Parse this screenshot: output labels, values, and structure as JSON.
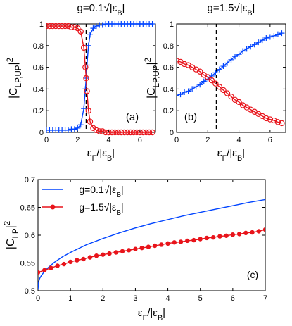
{
  "chart_data": [
    {
      "type": "line",
      "panel_label": "(a)",
      "title": "g=0.1√|εB|",
      "xlabel": "εF/|εB|",
      "ylabel": "|CLP,UP|²",
      "xlim": [
        0,
        7
      ],
      "ylim": [
        0,
        1
      ],
      "xticks": [
        "0",
        "2",
        "4",
        "6"
      ],
      "yticks": [
        "0",
        "0.2",
        "0.4",
        "0.6",
        "0.8",
        "1"
      ],
      "vline_x": 2.55,
      "series": [
        {
          "color": "#0044ff",
          "marker": "+",
          "x": [
            0,
            0.2,
            0.4,
            0.6,
            0.8,
            1.0,
            1.2,
            1.4,
            1.6,
            1.8,
            2.0,
            2.2,
            2.4,
            2.5,
            2.55,
            2.6,
            2.7,
            2.8,
            3.0,
            3.2,
            3.4,
            3.6,
            3.8,
            4.0,
            4.2,
            4.4,
            4.6,
            4.8,
            5.0,
            5.2,
            5.4,
            5.6,
            5.8,
            6.0,
            6.2,
            6.4,
            6.6,
            6.8
          ],
          "y": [
            0.02,
            0.02,
            0.02,
            0.02,
            0.02,
            0.02,
            0.02,
            0.02,
            0.03,
            0.03,
            0.04,
            0.07,
            0.22,
            0.4,
            0.5,
            0.62,
            0.8,
            0.9,
            0.96,
            0.98,
            0.99,
            0.99,
            1,
            1,
            1,
            1,
            1,
            1,
            1,
            1,
            1,
            1,
            1,
            1,
            1,
            1,
            1,
            1
          ]
        },
        {
          "color": "#e8141b",
          "marker": "o",
          "x": [
            0,
            0.2,
            0.4,
            0.6,
            0.8,
            1.0,
            1.2,
            1.4,
            1.6,
            1.8,
            2.0,
            2.2,
            2.4,
            2.5,
            2.55,
            2.6,
            2.7,
            2.8,
            3.0,
            3.2,
            3.4,
            3.6,
            3.8,
            4.0,
            4.2,
            4.4,
            4.6,
            4.8,
            5.0,
            5.2,
            5.4,
            5.6,
            5.8,
            6.0,
            6.2,
            6.4,
            6.6,
            6.8
          ],
          "y": [
            0.98,
            0.98,
            0.98,
            0.98,
            0.98,
            0.98,
            0.98,
            0.98,
            0.97,
            0.97,
            0.96,
            0.93,
            0.78,
            0.6,
            0.5,
            0.38,
            0.2,
            0.1,
            0.04,
            0.02,
            0.01,
            0.01,
            0,
            0,
            0,
            0,
            0,
            0,
            0,
            0,
            0,
            0,
            0,
            0,
            0,
            0,
            0,
            0
          ]
        }
      ]
    },
    {
      "type": "line",
      "panel_label": "(b)",
      "title": "g=1.5√|εB|",
      "xlabel": "εF/|εB|",
      "ylabel": "|CLP,UP|²",
      "xlim": [
        0,
        7
      ],
      "ylim": [
        0,
        1
      ],
      "xticks": [
        "0",
        "2",
        "4",
        "6"
      ],
      "yticks": [
        "0",
        "0.2",
        "0.4",
        "0.6",
        "0.8",
        "1"
      ],
      "vline_x": 2.55,
      "series": [
        {
          "color": "#0044ff",
          "marker": "+",
          "x": [
            0,
            0.25,
            0.5,
            0.75,
            1.0,
            1.25,
            1.5,
            1.75,
            2.0,
            2.25,
            2.5,
            2.75,
            3.0,
            3.25,
            3.5,
            3.75,
            4.0,
            4.25,
            4.5,
            4.75,
            5.0,
            5.25,
            5.5,
            5.75,
            6.0,
            6.25,
            6.5,
            6.75
          ],
          "y": [
            0.34,
            0.35,
            0.37,
            0.38,
            0.4,
            0.42,
            0.44,
            0.47,
            0.49,
            0.52,
            0.55,
            0.58,
            0.61,
            0.64,
            0.67,
            0.7,
            0.72,
            0.75,
            0.77,
            0.79,
            0.81,
            0.83,
            0.85,
            0.87,
            0.88,
            0.89,
            0.905,
            0.915
          ]
        },
        {
          "color": "#e8141b",
          "marker": "o",
          "x": [
            0,
            0.25,
            0.5,
            0.75,
            1.0,
            1.25,
            1.5,
            1.75,
            2.0,
            2.25,
            2.5,
            2.75,
            3.0,
            3.25,
            3.5,
            3.75,
            4.0,
            4.25,
            4.5,
            4.75,
            5.0,
            5.25,
            5.5,
            5.75,
            6.0,
            6.25,
            6.5,
            6.75
          ],
          "y": [
            0.66,
            0.65,
            0.63,
            0.62,
            0.6,
            0.58,
            0.56,
            0.53,
            0.51,
            0.48,
            0.45,
            0.42,
            0.39,
            0.36,
            0.33,
            0.3,
            0.28,
            0.25,
            0.23,
            0.21,
            0.19,
            0.17,
            0.15,
            0.13,
            0.12,
            0.11,
            0.095,
            0.085
          ]
        }
      ]
    },
    {
      "type": "line",
      "panel_label": "(c)",
      "xlabel": "εF/|εB|",
      "ylabel": "|CLP|²",
      "xlim": [
        0,
        7
      ],
      "ylim": [
        0.5,
        0.7
      ],
      "xticks": [
        "0",
        "1",
        "2",
        "3",
        "4",
        "5",
        "6",
        "7"
      ],
      "yticks": [
        "0.5",
        "0.55",
        "0.6",
        "0.65",
        "0.7"
      ],
      "legend_position": "top-left",
      "series": [
        {
          "name": "g=0.1√|εB|",
          "color": "#0044ff",
          "marker": "none",
          "x": [
            0,
            0.02,
            0.05,
            0.1,
            0.2,
            0.3,
            0.5,
            0.75,
            1.0,
            1.5,
            2.0,
            2.5,
            3.0,
            3.5,
            4.0,
            4.5,
            5.0,
            5.5,
            6.0,
            6.5,
            7.0
          ],
          "y": [
            0.502,
            0.516,
            0.522,
            0.527,
            0.535,
            0.541,
            0.551,
            0.561,
            0.569,
            0.583,
            0.594,
            0.604,
            0.613,
            0.621,
            0.628,
            0.635,
            0.641,
            0.647,
            0.653,
            0.659,
            0.664
          ]
        },
        {
          "name": "g=1.5√|εB|",
          "color": "#e8141b",
          "marker": "o",
          "x": [
            0,
            0.2,
            0.4,
            0.6,
            0.8,
            1.0,
            1.2,
            1.4,
            1.6,
            1.8,
            2.0,
            2.2,
            2.4,
            2.6,
            2.8,
            3.0,
            3.2,
            3.4,
            3.6,
            3.8,
            4.0,
            4.2,
            4.4,
            4.6,
            4.8,
            5.0,
            5.2,
            5.4,
            5.6,
            5.8,
            6.0,
            6.2,
            6.4,
            6.6,
            6.8,
            7.0
          ],
          "y": [
            0.533,
            0.537,
            0.541,
            0.545,
            0.548,
            0.552,
            0.555,
            0.557,
            0.56,
            0.563,
            0.565,
            0.567,
            0.569,
            0.571,
            0.573,
            0.575,
            0.577,
            0.579,
            0.581,
            0.583,
            0.585,
            0.587,
            0.588,
            0.59,
            0.591,
            0.593,
            0.595,
            0.596,
            0.598,
            0.599,
            0.601,
            0.602,
            0.604,
            0.605,
            0.607,
            0.61
          ]
        }
      ]
    }
  ]
}
